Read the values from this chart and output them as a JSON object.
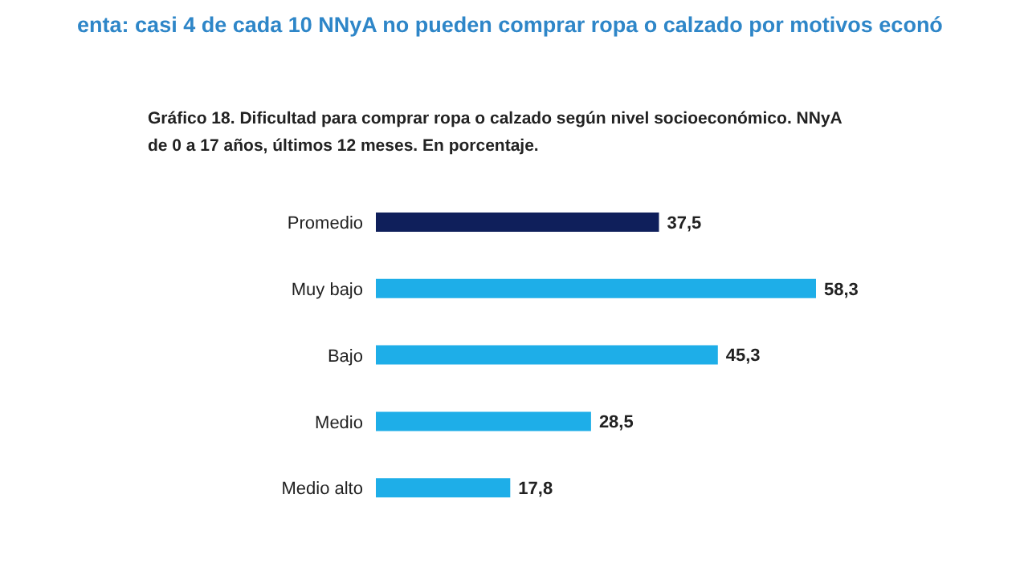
{
  "chart_data": {
    "type": "bar",
    "orientation": "horizontal",
    "title": "enta: casi 4 de cada 10 NNyA no pueden comprar ropa o calzado por motivos econó",
    "subtitle": "Gráfico 18. Dificultad para comprar ropa o calzado según nivel socioeconómico. NNyA de 0 a 17 años, últimos 12 meses. En porcentaje.",
    "categories": [
      "Promedio",
      "Muy bajo",
      "Bajo",
      "Medio",
      "Medio alto"
    ],
    "values": [
      37.5,
      58.3,
      45.3,
      28.5,
      17.8
    ],
    "value_labels": [
      "37,5",
      "58,3",
      "45,3",
      "28,5",
      "17,8"
    ],
    "colors": [
      "#0f1f5b",
      "#1eaee8",
      "#1eaee8",
      "#1eaee8",
      "#1eaee8"
    ]
  }
}
